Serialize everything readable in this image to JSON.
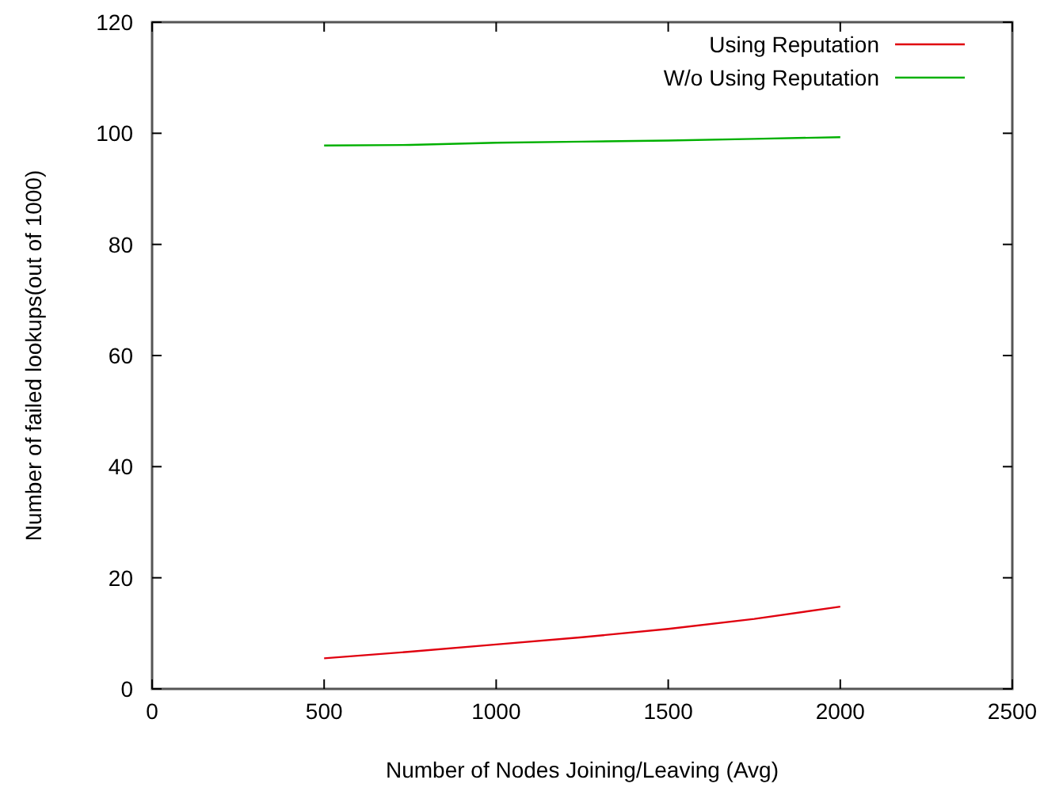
{
  "chart_data": {
    "type": "line",
    "xlabel": "Number of Nodes Joining/Leaving (Avg)",
    "ylabel": "Number of failed lookups(out of 1000)",
    "x": [
      500,
      750,
      1000,
      1250,
      1500,
      1750,
      2000
    ],
    "series": [
      {
        "name": "Using Reputation",
        "color": "#e0000f",
        "values": [
          5.5,
          6.7,
          8,
          9.3,
          10.8,
          12.6,
          14.8
        ]
      },
      {
        "name": "W/o Using Reputation",
        "color": "#00b000",
        "values": [
          97.8,
          97.9,
          98.3,
          98.5,
          98.7,
          99,
          99.3
        ]
      }
    ],
    "xlim": [
      0,
      2500
    ],
    "ylim": [
      0,
      120
    ],
    "xticks": [
      0,
      500,
      1000,
      1500,
      2000,
      2500
    ],
    "yticks": [
      0,
      20,
      40,
      60,
      80,
      100,
      120
    ],
    "legend": "top right",
    "grid": false
  }
}
